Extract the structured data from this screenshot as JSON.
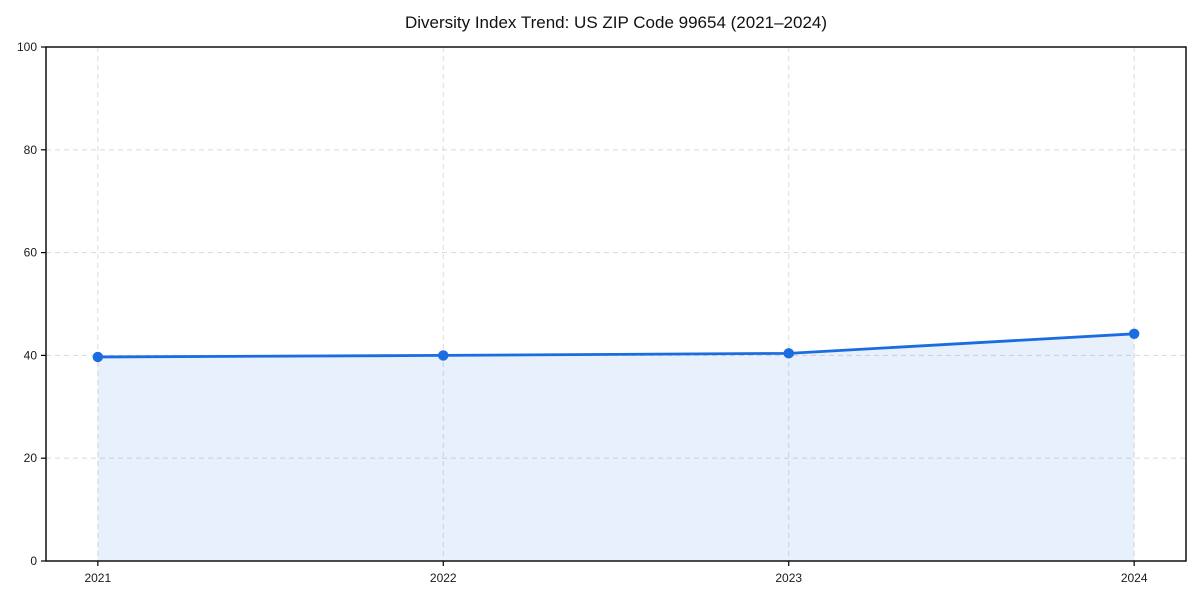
{
  "chart_data": {
    "type": "line",
    "title": "Diversity Index Trend: US ZIP Code 99654 (2021–2024)",
    "x": [
      2021,
      2022,
      2023,
      2024
    ],
    "values": [
      39.7,
      40.0,
      40.4,
      44.2
    ],
    "x_ticks": [
      "2021",
      "2022",
      "2023",
      "2024"
    ],
    "y_ticks": [
      0,
      20,
      40,
      60,
      80,
      100
    ],
    "xlim": [
      2020.85,
      2024.15
    ],
    "ylim": [
      0,
      100
    ],
    "grid": true,
    "grid_style": "dashed",
    "legend_position": "none",
    "marker": "circle",
    "area_fill": true,
    "colors": {
      "line": "#1b6ce0",
      "marker": "#1b6ce0",
      "area": "#1b6ce0",
      "area_opacity": 0.1,
      "grid": "#dedede",
      "spine": "#000000",
      "tick_label": "#1a1a1a",
      "background": "#ffffff"
    }
  }
}
